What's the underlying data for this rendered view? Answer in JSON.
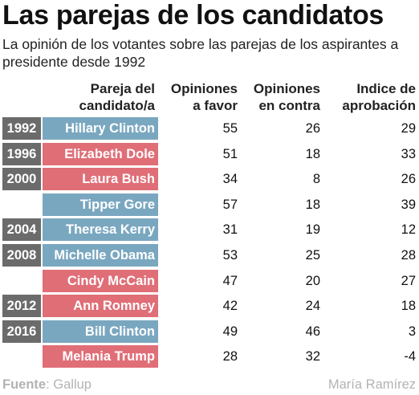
{
  "title": "Las parejas de los candidatos",
  "subtitle": "La opinión de los votantes sobre las parejas de los aspirantes a presidente desde 1992",
  "headers": {
    "couple_1": "Pareja del",
    "couple_2": "candidato/a",
    "fav_1": "Opiniones",
    "fav_2": "a favor",
    "contra_1": "Opiniones",
    "contra_2": "en contra",
    "aprob_1": "Indice de",
    "aprob_2": "aprobación"
  },
  "colors": {
    "democrat": "#7aa7c0",
    "republican": "#e06e77",
    "year": "#6b6b6b"
  },
  "chart_data": {
    "type": "table",
    "columns": [
      "",
      "Pareja del candidato/a",
      "Opiniones a favor",
      "Opiniones en contra",
      "Indice de aprobación"
    ],
    "rows": [
      {
        "year": "1992",
        "name": "Hillary Clinton",
        "party": "democrat",
        "favor": "55",
        "contra": "26",
        "indice": "29"
      },
      {
        "year": "1996",
        "name": "Elizabeth Dole",
        "party": "republican",
        "favor": "51",
        "contra": "18",
        "indice": "33"
      },
      {
        "year": "2000",
        "name": "Laura Bush",
        "party": "republican",
        "favor": "34",
        "contra": "8",
        "indice": "26"
      },
      {
        "year": "",
        "name": "Tipper Gore",
        "party": "democrat",
        "favor": "57",
        "contra": "18",
        "indice": "39"
      },
      {
        "year": "2004",
        "name": "Theresa Kerry",
        "party": "democrat",
        "favor": "31",
        "contra": "19",
        "indice": "12"
      },
      {
        "year": "2008",
        "name": "Michelle Obama",
        "party": "democrat",
        "favor": "53",
        "contra": "25",
        "indice": "28"
      },
      {
        "year": "",
        "name": "Cindy McCain",
        "party": "republican",
        "favor": "47",
        "contra": "20",
        "indice": "27"
      },
      {
        "year": "2012",
        "name": "Ann Romney",
        "party": "republican",
        "favor": "42",
        "contra": "24",
        "indice": "18"
      },
      {
        "year": "2016",
        "name": "Bill Clinton",
        "party": "democrat",
        "favor": "49",
        "contra": "46",
        "indice": "3"
      },
      {
        "year": "",
        "name": "Melania Trump",
        "party": "republican",
        "favor": "28",
        "contra": "32",
        "indice": "-4"
      }
    ]
  },
  "footer": {
    "source_label": "Fuente",
    "source_value": ": Gallup",
    "author": "María Ramírez"
  }
}
